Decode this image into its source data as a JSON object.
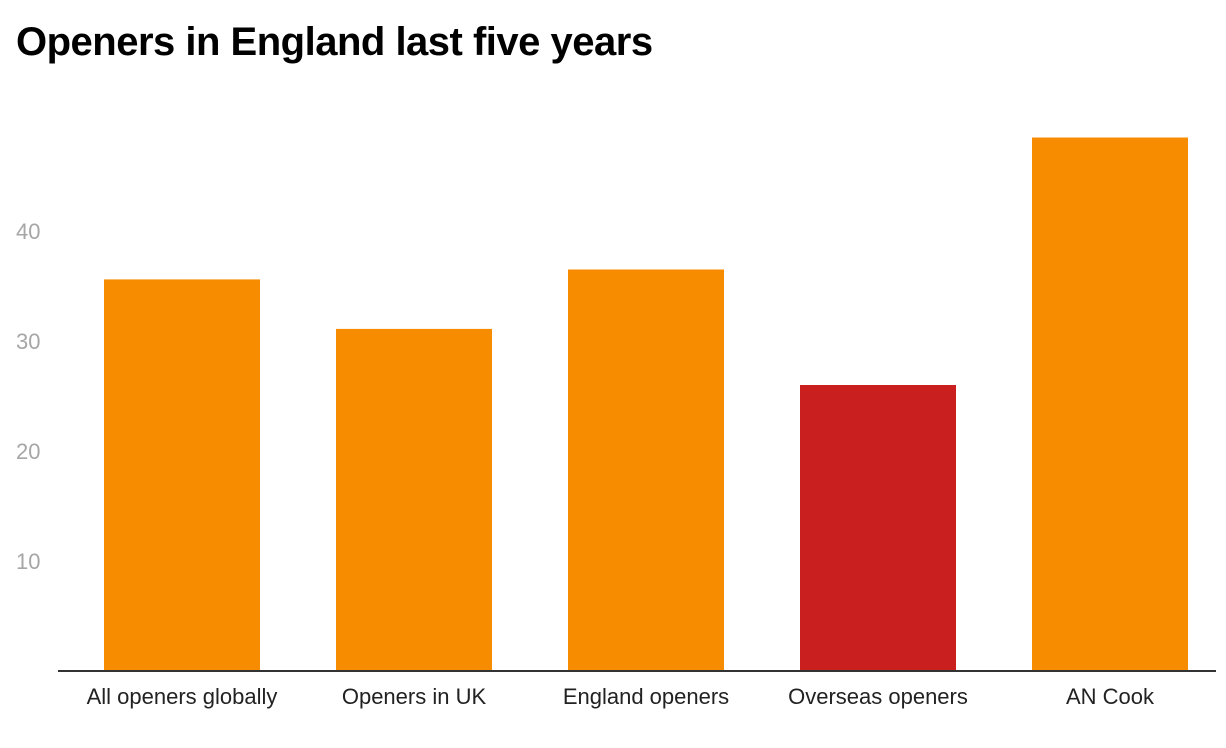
{
  "title": "Openers in England last five years",
  "chart_data": {
    "type": "bar",
    "title": "Openers in England last five years",
    "categories": [
      "All openers globally",
      "Openers in UK",
      "England openers",
      "Overseas openers",
      "AN Cook"
    ],
    "values": [
      35.6,
      31.1,
      36.5,
      26.0,
      48.5
    ],
    "colors": [
      "#f88c00",
      "#f88c00",
      "#f88c00",
      "#c91f1f",
      "#f88c00"
    ],
    "yticks": [
      10,
      20,
      30,
      40
    ],
    "ylim": [
      0,
      50
    ],
    "xlabel": "",
    "ylabel": "",
    "grid": false,
    "legend": "none"
  }
}
